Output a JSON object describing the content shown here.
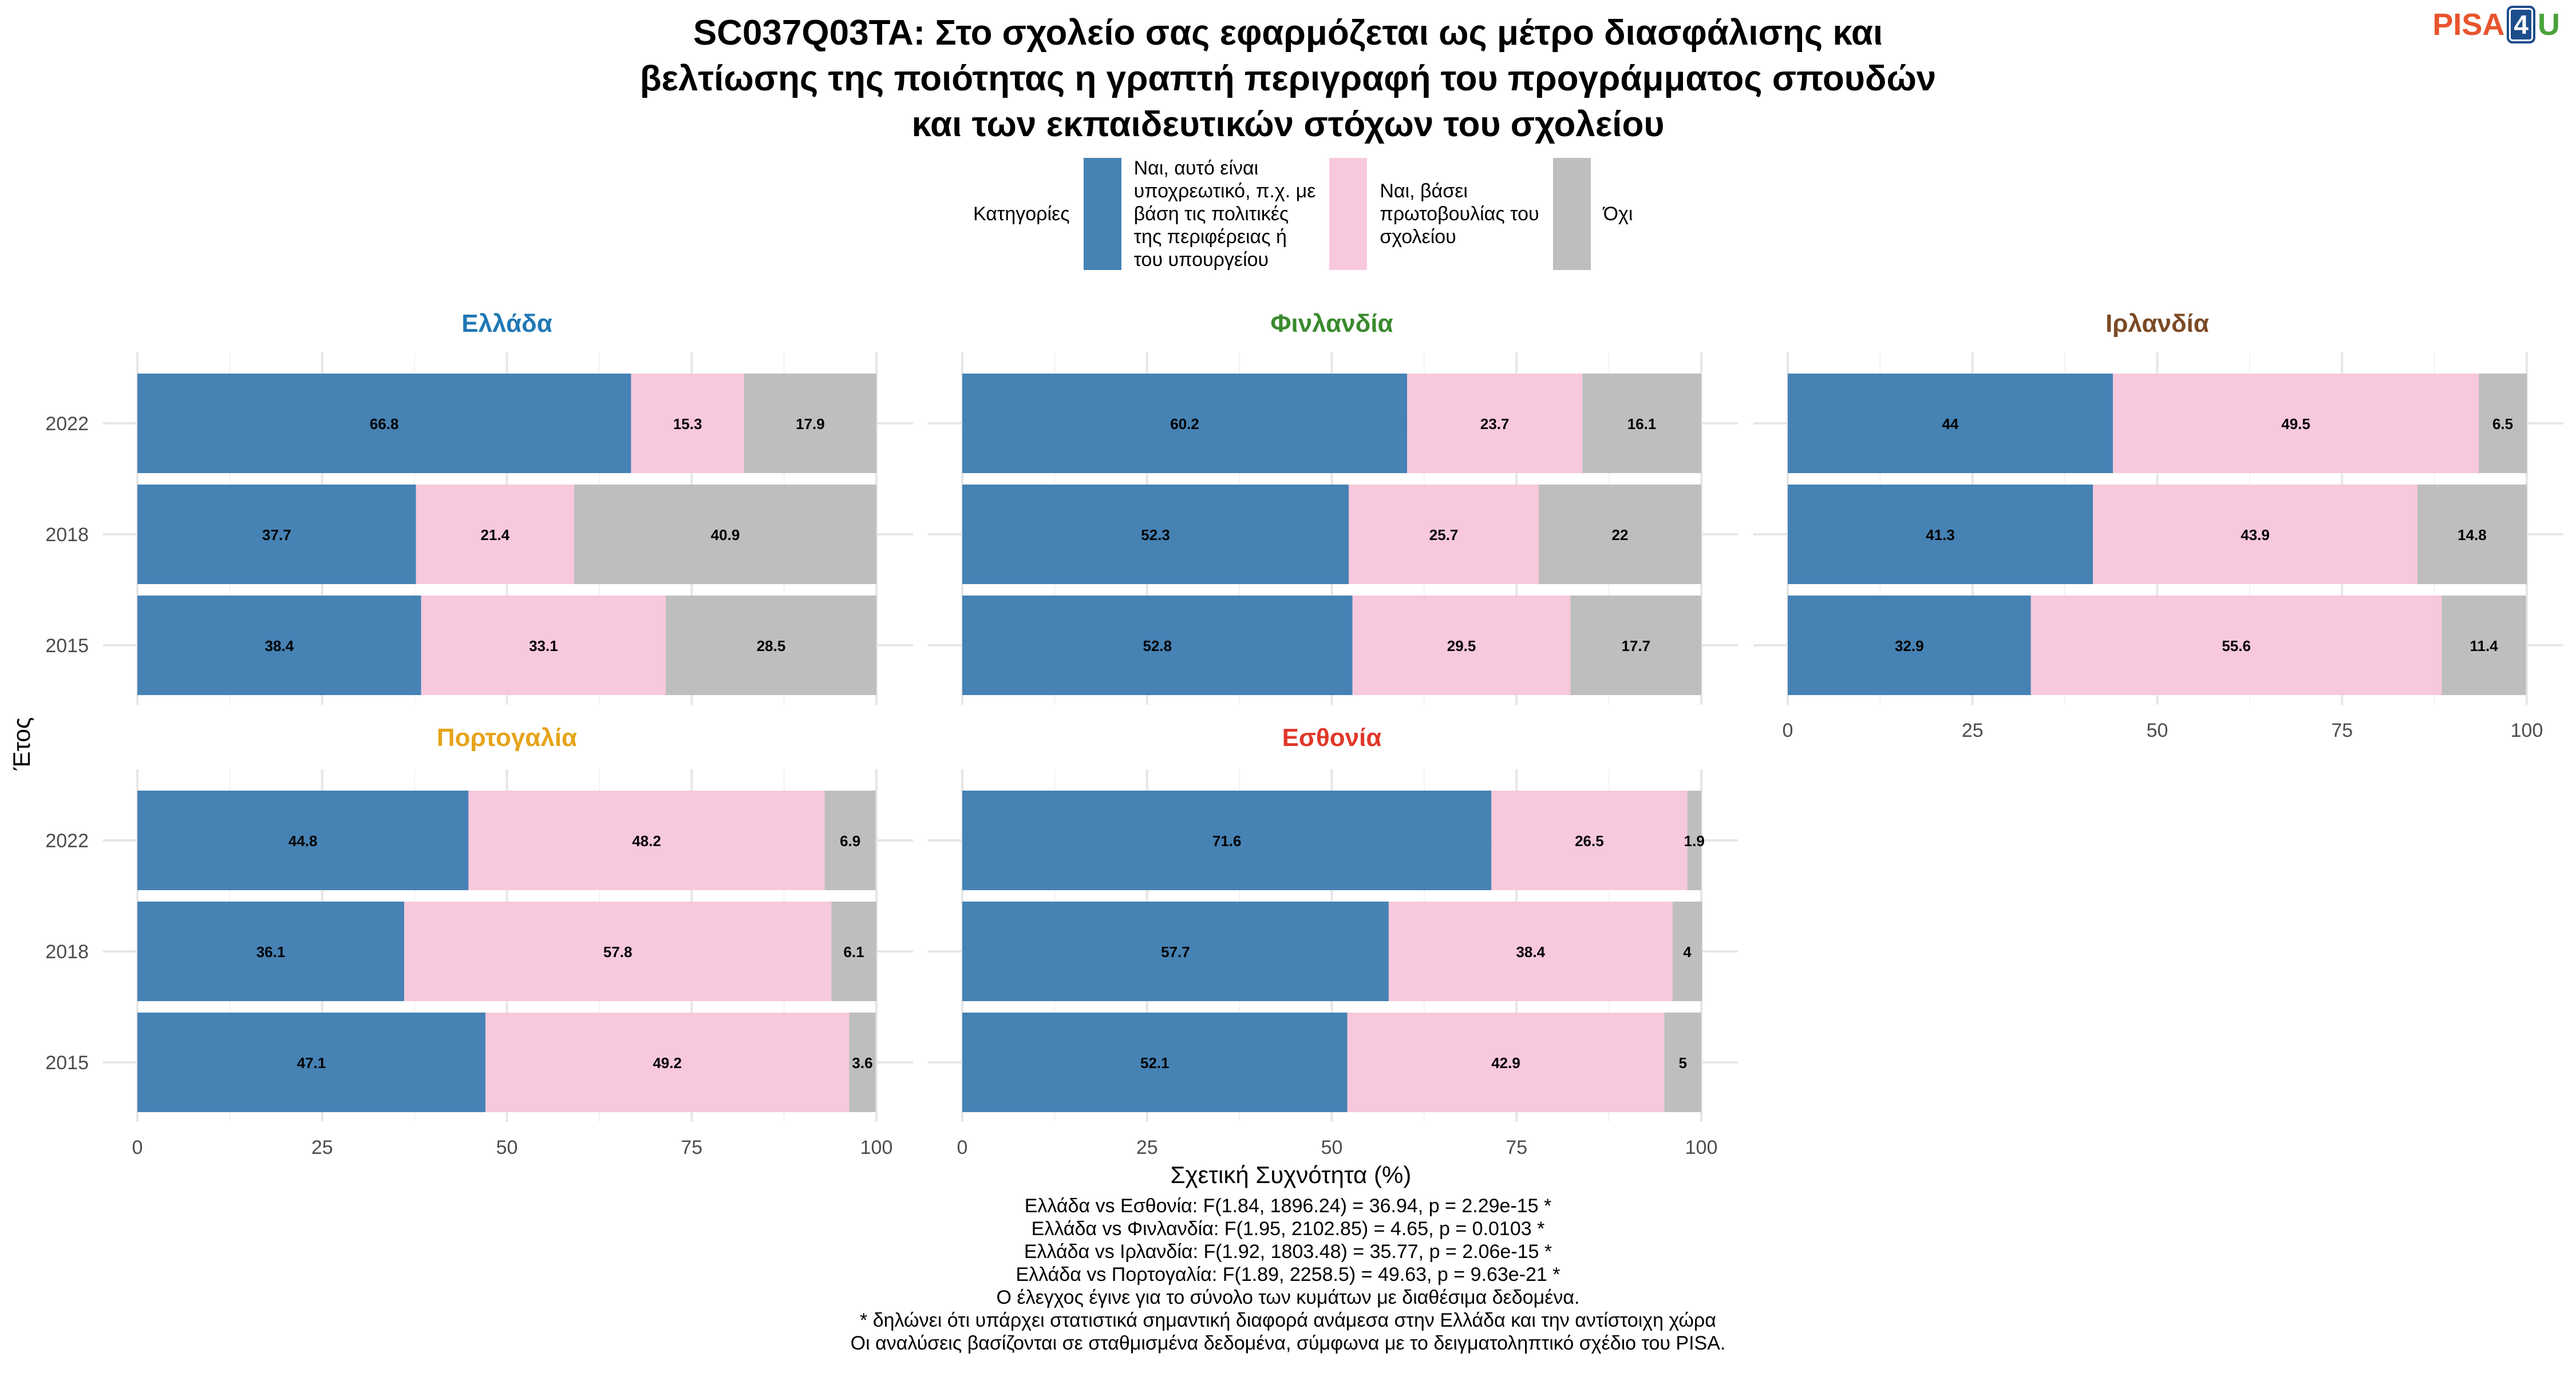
{
  "title_lines": [
    "SC037Q03TA: Στο σχολείο σας εφαρμόζεται ως μέτρο διασφάλισης και",
    "βελτίωσης της ποιότητας η γραπτή περιγραφή του προγράμματος σπουδών",
    "και των εκπαιδευτικών στόχων του σχολείου"
  ],
  "logo": {
    "part1": "PISA",
    "part2": "4",
    "part3": "U"
  },
  "legend": {
    "title": "Κατηγορίες",
    "items": [
      {
        "label": "Ναι, αυτό είναι\nυποχρεωτικό, π.χ. με\nβάση τις πολιτικές\nτης περιφέρειας ή\nτου υπουργείου",
        "color": "#4682b4"
      },
      {
        "label": "Ναι, βάσει\nπρωτοβουλίας του\nσχολείου",
        "color": "#f8c8dc"
      },
      {
        "label": "Όχι",
        "color": "#bebebe"
      }
    ]
  },
  "axis": {
    "xlabel": "Σχετική Συχνότητα (%)",
    "ylabel": "Έτος"
  },
  "chart_data": {
    "type": "bar",
    "orientation": "horizontal",
    "stacked": true,
    "categories": [
      "2022",
      "2018",
      "2015"
    ],
    "xlim": [
      0,
      100
    ],
    "xticks": [
      "0",
      "25",
      "50",
      "75",
      "100"
    ],
    "grid": true,
    "legend_position": "top",
    "series_names": [
      "Ναι, αυτό είναι υποχρεωτικό, π.χ. με βάση τις πολιτικές της περιφέρειας ή του υπουργείου",
      "Ναι, βάσει πρωτοβουλίας του σχολείου",
      "Όχι"
    ],
    "series_colors": [
      "#4682b4",
      "#f8c8dc",
      "#bebebe"
    ],
    "panels": [
      {
        "name": "Ελλάδα",
        "color": "#1f78b4",
        "rows": [
          {
            "year": "2022",
            "values": [
              66.8,
              15.3,
              17.9
            ]
          },
          {
            "year": "2018",
            "values": [
              37.7,
              21.4,
              40.9
            ]
          },
          {
            "year": "2015",
            "values": [
              38.4,
              33.1,
              28.5
            ]
          }
        ]
      },
      {
        "name": "Φινλανδία",
        "color": "#3a8a2e",
        "rows": [
          {
            "year": "2022",
            "values": [
              60.2,
              23.7,
              16.1
            ]
          },
          {
            "year": "2018",
            "values": [
              52.3,
              25.7,
              22
            ]
          },
          {
            "year": "2015",
            "values": [
              52.8,
              29.5,
              17.7
            ]
          }
        ]
      },
      {
        "name": "Ιρλανδία",
        "color": "#7b4a26",
        "rows": [
          {
            "year": "2022",
            "values": [
              44,
              49.5,
              6.5
            ]
          },
          {
            "year": "2018",
            "values": [
              41.3,
              43.9,
              14.8
            ]
          },
          {
            "year": "2015",
            "values": [
              32.9,
              55.6,
              11.4
            ]
          }
        ]
      },
      {
        "name": "Πορτογαλία",
        "color": "#e6a31a",
        "rows": [
          {
            "year": "2022",
            "values": [
              44.8,
              48.2,
              6.9
            ]
          },
          {
            "year": "2018",
            "values": [
              36.1,
              57.8,
              6.1
            ]
          },
          {
            "year": "2015",
            "values": [
              47.1,
              49.2,
              3.6
            ]
          }
        ]
      },
      {
        "name": "Εσθονία",
        "color": "#e0382a",
        "rows": [
          {
            "year": "2022",
            "values": [
              71.6,
              26.5,
              1.9
            ]
          },
          {
            "year": "2018",
            "values": [
              57.7,
              38.4,
              4
            ]
          },
          {
            "year": "2015",
            "values": [
              52.1,
              42.9,
              5
            ]
          }
        ]
      }
    ]
  },
  "notes": [
    "Ελλάδα vs Εσθονία: F(1.84, 1896.24) = 36.94, p = 2.29e-15 *",
    "Ελλάδα vs Φινλανδία: F(1.95, 2102.85) = 4.65, p = 0.0103 *",
    "Ελλάδα vs Ιρλανδία: F(1.92, 1803.48) = 35.77, p = 2.06e-15 *",
    "Ελλάδα vs Πορτογαλία: F(1.89, 2258.5) = 49.63, p = 9.63e-21 *",
    "Ο έλεγχος έγινε για το σύνολο των κυμάτων με διαθέσιμα δεδομένα.",
    "* δηλώνει ότι υπάρχει στατιστικά σημαντική διαφορά ανάμεσα στην Ελλάδα και την αντίστοιχη χώρα",
    "Οι αναλύσεις βασίζονται σε σταθμισμένα δεδομένα, σύμφωνα με το δειγματοληπτικό σχέδιο του PISA."
  ]
}
